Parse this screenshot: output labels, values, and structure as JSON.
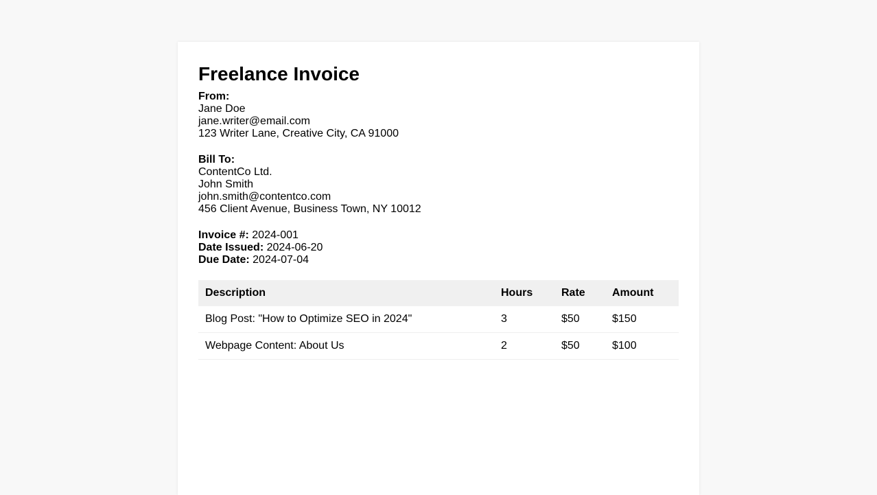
{
  "title": "Freelance Invoice",
  "from": {
    "label": "From:",
    "name": "Jane Doe",
    "email": "jane.writer@email.com",
    "address": "123 Writer Lane, Creative City, CA 91000"
  },
  "bill_to": {
    "label": "Bill To:",
    "company": "ContentCo Ltd.",
    "name": "John Smith",
    "email": "john.smith@contentco.com",
    "address": "456 Client Avenue, Business Town, NY 10012"
  },
  "meta": {
    "invoice_label": "Invoice #:",
    "invoice": "2024-001",
    "issued_label": "Date Issued:",
    "issued": "2024-06-20",
    "due_label": "Due Date:",
    "due": "2024-07-04"
  },
  "table": {
    "headers": [
      "Description",
      "Hours",
      "Rate",
      "Amount"
    ],
    "rows": [
      [
        "Blog Post: \"How to Optimize SEO in 2024\"",
        "3",
        "$50",
        "$150"
      ],
      [
        "Webpage Content: About Us",
        "2",
        "$50",
        "$100"
      ]
    ]
  }
}
